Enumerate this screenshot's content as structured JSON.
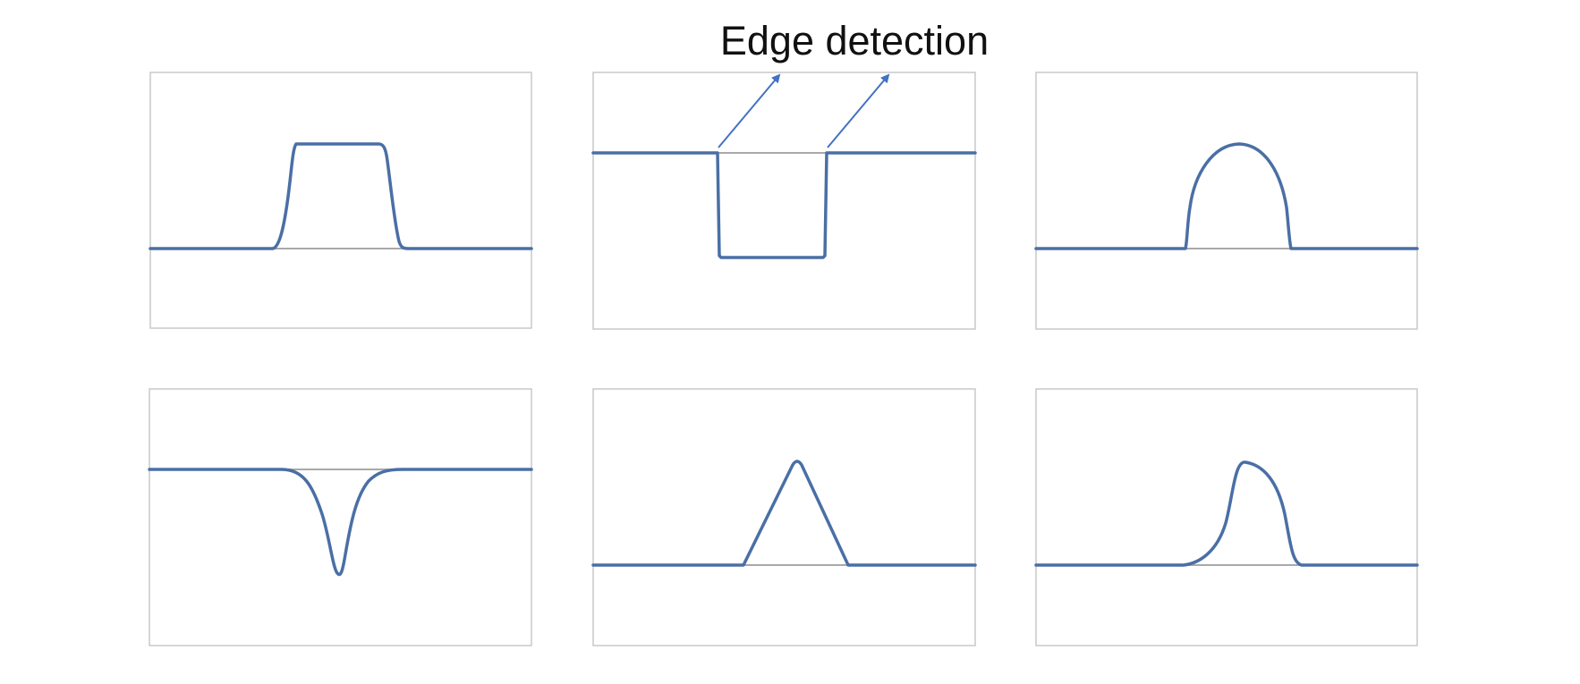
{
  "title": "Edge detection",
  "colors": {
    "signal": "#4a6fa5",
    "arrow": "#4472c4",
    "baseline": "#a9a9a9",
    "frame": "#c8c8c8"
  },
  "panels": [
    {
      "id": "rectangular-pulse",
      "shape": "rounded rectangular bump above baseline"
    },
    {
      "id": "inverted-pulse",
      "shape": "sharp rectangular dip below baseline with edge arrows"
    },
    {
      "id": "half-ellipse-pulse",
      "shape": "semi-elliptical bump above baseline"
    },
    {
      "id": "gaussian-dip",
      "shape": "narrow bell-shaped dip below baseline"
    },
    {
      "id": "triangular-pulse",
      "shape": "triangular peak above baseline"
    },
    {
      "id": "skewed-pulse",
      "shape": "asymmetric bump above baseline"
    }
  ]
}
